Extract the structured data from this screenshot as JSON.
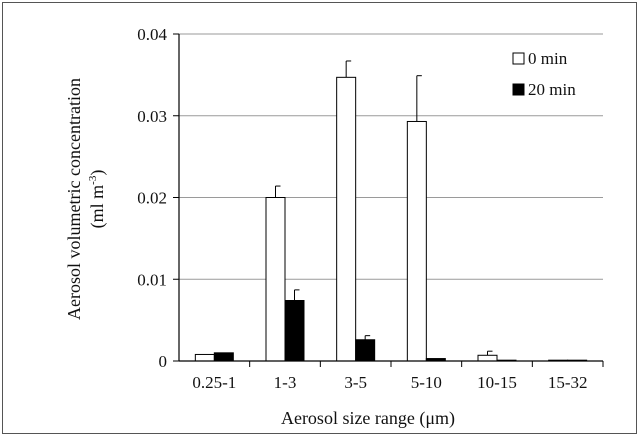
{
  "chart_data": {
    "type": "bar",
    "title": "",
    "xlabel": "Aerosol size range (μm)",
    "ylabel_line1": "Aerosol volumetric concentration",
    "ylabel_line2_prefix": "(ml m",
    "ylabel_line2_sup": "-3",
    "ylabel_line2_suffix": ")",
    "ylim": [
      0,
      0.04
    ],
    "yticks": [
      0,
      0.01,
      0.02,
      0.03,
      0.04
    ],
    "ytick_labels": [
      "0",
      "0.01",
      "0.02",
      "0.03",
      "0.04"
    ],
    "categories": [
      "0.25-1",
      "1-3",
      "3-5",
      "5-10",
      "10-15",
      "15-32"
    ],
    "series": [
      {
        "name": "0 min",
        "fill": "#ffffff",
        "values": [
          0.0008,
          0.02,
          0.0347,
          0.0293,
          0.0007,
          0.0001
        ],
        "errors": [
          0.0,
          0.0014,
          0.002,
          0.0056,
          0.0005,
          0.0
        ]
      },
      {
        "name": "20 min",
        "fill": "#000000",
        "values": [
          0.001,
          0.0074,
          0.0026,
          0.0003,
          0.0001,
          0.0001
        ],
        "errors": [
          0.0,
          0.0013,
          0.0005,
          0.0,
          0.0,
          0.0
        ]
      }
    ],
    "grid": "horizontal",
    "legend_position": "top-right"
  }
}
